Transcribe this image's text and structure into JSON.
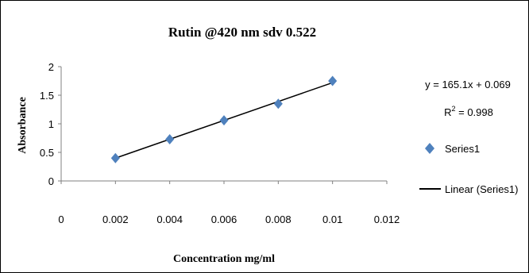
{
  "chart_data": {
    "type": "scatter",
    "title": "Rutin @420 nm sdv 0.522",
    "xlabel": "Concentration mg/ml",
    "ylabel": "Absorbance",
    "xlim": [
      0,
      0.012
    ],
    "ylim": [
      0,
      2
    ],
    "x_ticks": [
      "0",
      "0.002",
      "0.004",
      "0.006",
      "0.008",
      "0.01",
      "0.012"
    ],
    "y_ticks": [
      "0",
      "0.5",
      "1",
      "1.5",
      "2"
    ],
    "grid": false,
    "series": [
      {
        "name": "Series1",
        "marker": "diamond",
        "color": "#4F81BD",
        "x": [
          0.002,
          0.004,
          0.006,
          0.008,
          0.01
        ],
        "y": [
          0.4,
          0.73,
          1.06,
          1.35,
          1.75
        ]
      }
    ],
    "trendline": {
      "name": "Linear (Series1)",
      "color": "#000000",
      "slope": 165.1,
      "intercept": 0.069,
      "x_range": [
        0.002,
        0.01
      ],
      "equation": "y = 165.1x + 0.069",
      "r2_label": "R",
      "r2_sup": "2",
      "r2_value": " = 0.998"
    },
    "legend_position": "right"
  }
}
